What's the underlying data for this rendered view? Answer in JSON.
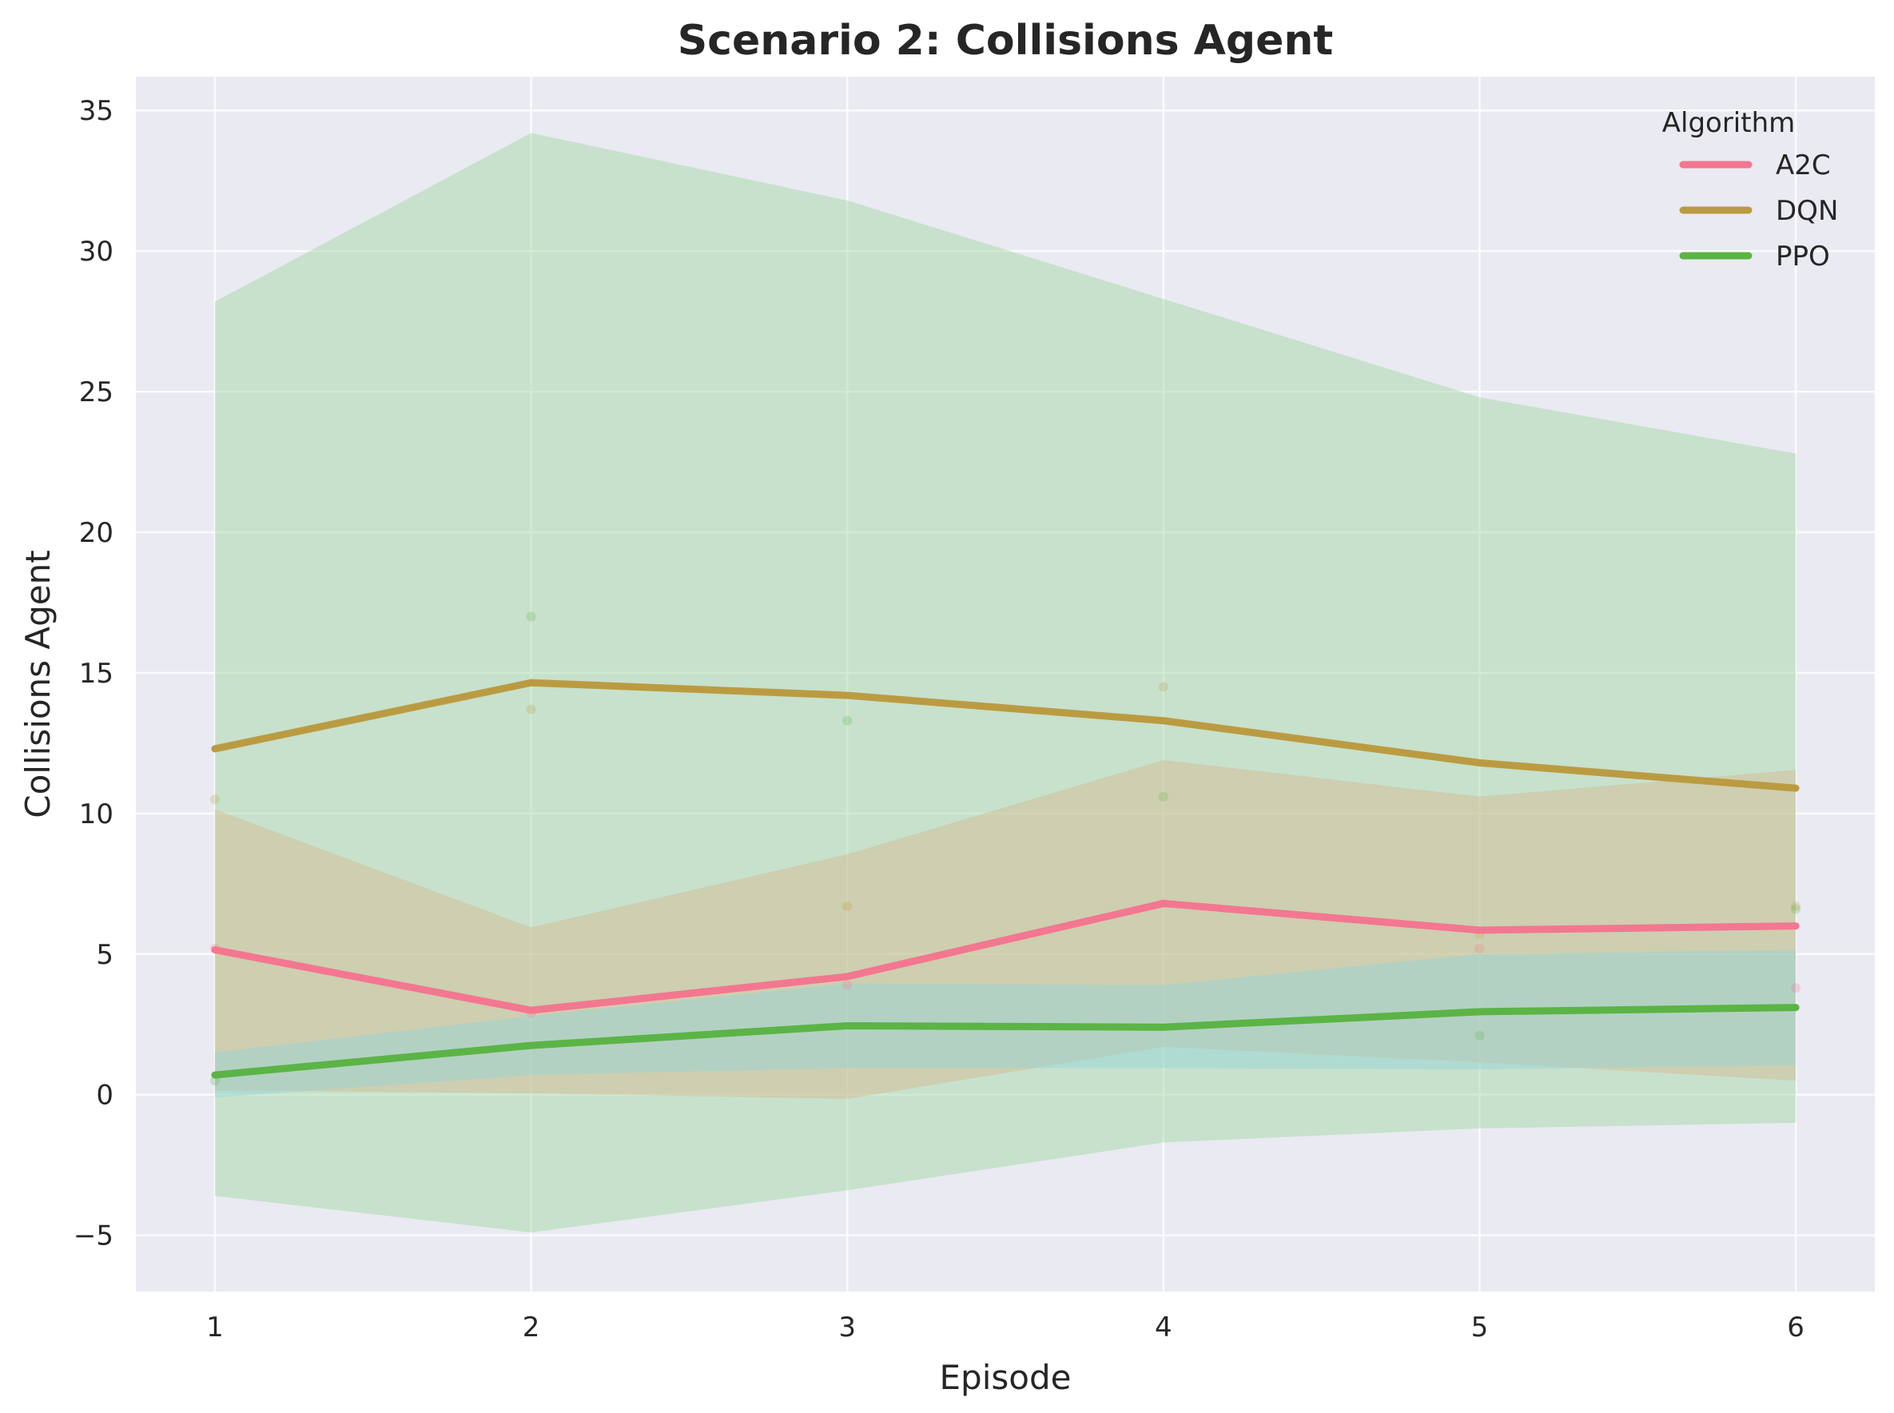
{
  "chart_data": {
    "type": "line",
    "title": "Scenario 2: Collisions Agent",
    "xlabel": "Episode",
    "ylabel": "Collisions Agent",
    "x": [
      1,
      2,
      3,
      4,
      5,
      6
    ],
    "xlim": [
      0.75,
      6.25
    ],
    "ylim": [
      -7,
      36.2
    ],
    "xticks": [
      "1",
      "2",
      "3",
      "4",
      "5",
      "6"
    ],
    "yticks": [
      -5,
      0,
      5,
      10,
      15,
      20,
      25,
      30,
      35
    ],
    "ytick_labels": [
      "−5",
      "0",
      "5",
      "10",
      "15",
      "20",
      "25",
      "30",
      "35"
    ],
    "grid": true,
    "legend": {
      "title": "Algorithm",
      "placement": "top-right"
    },
    "series": [
      {
        "name": "A2C",
        "color": "#f37790",
        "band_color": "#d6b78e",
        "values": [
          5.15,
          3.0,
          4.2,
          6.8,
          5.85,
          6.0
        ],
        "band_lower": [
          0.15,
          0.05,
          -0.15,
          1.7,
          1.15,
          0.5
        ],
        "band_upper": [
          10.15,
          5.95,
          8.55,
          11.9,
          10.6,
          11.55
        ],
        "points": [
          5.2,
          2.9,
          3.9,
          6.8,
          5.2,
          3.8
        ]
      },
      {
        "name": "DQN",
        "color": "#bb9b41",
        "band_color": "#9ed69e",
        "values": [
          12.3,
          14.65,
          14.2,
          13.3,
          11.8,
          10.9
        ],
        "band_lower": [
          -3.6,
          -4.9,
          -3.4,
          -1.7,
          -1.2,
          -1.0
        ],
        "band_upper": [
          28.2,
          34.2,
          31.8,
          28.3,
          24.8,
          22.8
        ],
        "points": [
          10.5,
          13.7,
          6.7,
          14.5,
          5.7,
          6.7
        ]
      },
      {
        "name": "PPO",
        "color": "#5bb445",
        "band_color": "#93d4d9",
        "values": [
          0.7,
          1.75,
          2.45,
          2.4,
          2.95,
          3.1
        ],
        "band_lower": [
          -0.1,
          0.7,
          0.95,
          0.95,
          0.9,
          1.05
        ],
        "band_upper": [
          1.5,
          2.8,
          3.95,
          3.9,
          5.0,
          5.15
        ],
        "points": [
          0.5,
          17.0,
          13.3,
          10.6,
          2.1,
          6.6
        ]
      }
    ]
  }
}
